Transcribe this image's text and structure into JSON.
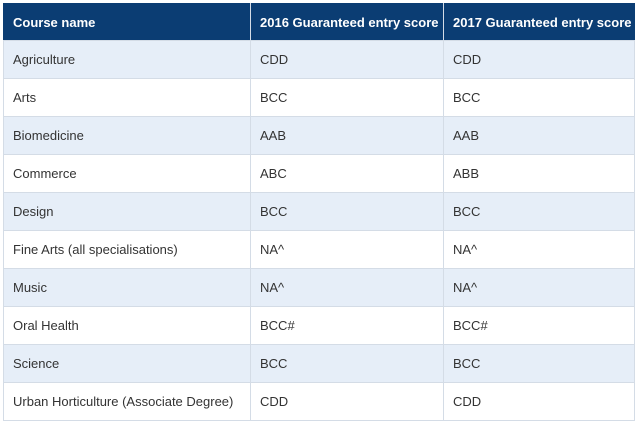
{
  "table": {
    "headers": [
      "Course name",
      "2016 Guaranteed entry score",
      "2017 Guaranteed entry score"
    ],
    "rows": [
      [
        "Agriculture",
        "CDD",
        "CDD"
      ],
      [
        "Arts",
        "BCC",
        "BCC"
      ],
      [
        "Biomedicine",
        "AAB",
        "AAB"
      ],
      [
        "Commerce",
        "ABC",
        "ABB"
      ],
      [
        "Design",
        "BCC",
        "BCC"
      ],
      [
        "Fine Arts (all specialisations)",
        "NA^",
        "NA^"
      ],
      [
        "Music",
        "NA^",
        "NA^"
      ],
      [
        "Oral Health",
        "BCC#",
        "BCC#"
      ],
      [
        "Science",
        "BCC",
        "BCC"
      ],
      [
        "Urban Horticulture (Associate Degree)",
        "CDD",
        "CDD"
      ]
    ]
  },
  "colors": {
    "header_bg": "#0b3d73",
    "header_text": "#ffffff",
    "stripe_bg": "#e6eef8",
    "border": "#d4dce6"
  }
}
